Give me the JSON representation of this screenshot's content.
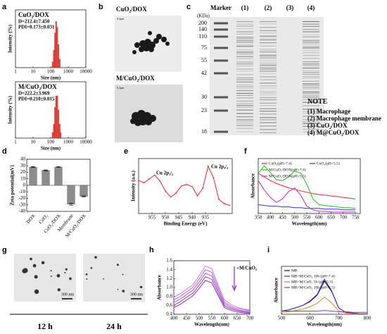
{
  "panel_labels": [
    "a",
    "b",
    "c",
    "d",
    "e",
    "f",
    "g",
    "h",
    "i"
  ],
  "chart_data": [
    {
      "type": "histogram",
      "annotations": [
        "CuO₂/DOX",
        "D=212.4±7.450",
        "PDI=0.173±0.031"
      ],
      "xlabel": "Size (nm)",
      "ylabel": "Intensity (%)",
      "log_x": true,
      "xlim": [
        1,
        10000
      ],
      "xticks": [
        1,
        10,
        100,
        1000,
        10000
      ],
      "ylim": [
        0,
        20
      ],
      "bins": [
        120,
        140,
        165,
        190,
        220,
        255,
        300,
        350
      ],
      "counts": [
        2,
        6,
        12,
        16,
        14,
        8,
        3
      ],
      "color": "#e8483f"
    },
    {
      "type": "histogram",
      "annotations": [
        "M/CuO₂/DOX",
        "D=222.2±3.969",
        "PDI=0.210±0.015"
      ],
      "xlabel": "Size (nm)",
      "ylabel": "Intensity (%)",
      "log_x": true,
      "xlim": [
        1,
        10000
      ],
      "xticks": [
        1,
        10,
        100,
        1000,
        10000
      ],
      "ylim": [
        0,
        20
      ],
      "bins": [
        120,
        140,
        165,
        190,
        220,
        255,
        300,
        350,
        400
      ],
      "counts": [
        2,
        5,
        11,
        15,
        15,
        10,
        5,
        2
      ],
      "color": "#e8483f"
    },
    {
      "type": "bar",
      "ylabel": "Zeta potential(mV)",
      "categories": [
        "DOX",
        "CuO₂",
        "CuO₂/DOX",
        "Membrane",
        "M/CuO₂/DOX"
      ],
      "values": [
        28,
        23,
        28,
        -29,
        -17
      ],
      "errors": [
        0.8,
        0.6,
        0.7,
        1.5,
        0.8
      ],
      "color": "#8c8c8c",
      "ylim": [
        -40,
        40
      ],
      "yticks": [
        40,
        30,
        20,
        10,
        0,
        -10,
        -20,
        -30,
        -40
      ]
    },
    {
      "type": "line",
      "xlabel": "Binding Energy (eV)",
      "ylabel": "Intensity (a.u.)",
      "annotations": [
        "Cu 2p₁/₂",
        "Cu 2p₃/₂"
      ],
      "xlim": [
        960,
        925
      ],
      "xticks": [
        955,
        950,
        945,
        940,
        935
      ],
      "ylim": [
        0,
        10
      ],
      "x": [
        960,
        958,
        956,
        954,
        952,
        950,
        948,
        946,
        944,
        942,
        940,
        938,
        936,
        934,
        932,
        930,
        928,
        926
      ],
      "series": [
        {
          "color": "#e8262a",
          "values": [
            6.0,
            5.6,
            6.3,
            7.0,
            5.9,
            4.1,
            3.0,
            3.7,
            5.0,
            5.3,
            4.9,
            3.2,
            4.6,
            8.6,
            6.5,
            2.6,
            1.8,
            1.5
          ]
        }
      ]
    },
    {
      "type": "line",
      "xlabel": "Wavelength(nm)",
      "ylabel": "Absorbance",
      "xlim": [
        350,
        770
      ],
      "xticks": [
        350,
        400,
        450,
        500,
        550,
        600,
        650,
        700,
        750
      ],
      "ylim": [
        0,
        0.75
      ],
      "x": [
        350,
        375,
        400,
        425,
        450,
        475,
        500,
        525,
        550,
        575,
        600,
        625,
        650,
        675,
        700,
        725,
        750
      ],
      "series": [
        {
          "name": "CuO₂(pH=7.4)",
          "color": "#e8262a",
          "values": [
            0.55,
            0.5,
            0.45,
            0.41,
            0.38,
            0.35,
            0.33,
            0.31,
            0.29,
            0.27,
            0.26,
            0.25,
            0.24,
            0.23,
            0.22,
            0.21,
            0.2
          ]
        },
        {
          "name": "CuO₂(pH=5.5)",
          "color": "#2f2fd8",
          "values": [
            0.12,
            0.11,
            0.1,
            0.1,
            0.09,
            0.09,
            0.08,
            0.08,
            0.07,
            0.07,
            0.07,
            0.06,
            0.06,
            0.06,
            0.05,
            0.05,
            0.05
          ]
        },
        {
          "name": "M/CuO₂/DOX(pH=7.4)",
          "color": "#2bb82b",
          "values": [
            0.55,
            0.65,
            0.56,
            0.46,
            0.45,
            0.5,
            0.58,
            0.55,
            0.4,
            0.2,
            0.12,
            0.11,
            0.1,
            0.09,
            0.08,
            0.08,
            0.07
          ]
        },
        {
          "name": "M/CuO₂/DOX(pH=5.5)",
          "color": "#c02cc8",
          "values": [
            0.45,
            0.32,
            0.22,
            0.15,
            0.2,
            0.3,
            0.35,
            0.25,
            0.1,
            0.05,
            0.03,
            0.03,
            0.02,
            0.02,
            0.02,
            0.02,
            0.02
          ]
        }
      ]
    },
    {
      "type": "line",
      "xlabel": "Wavelength(nm)",
      "ylabel": "Absorbance",
      "annotations": [
        "+M/CuO₂"
      ],
      "xlim": [
        400,
        700
      ],
      "xticks": [
        400,
        450,
        500,
        550,
        600,
        650,
        700
      ],
      "ylim": [
        0.4,
        1.6
      ],
      "yticks": [
        0.4,
        0.6,
        0.8,
        {
          "value": 1,
          "label": "1.0"
        },
        1.2,
        1.4,
        1.6
      ],
      "x": [
        400,
        425,
        450,
        475,
        500,
        525,
        550,
        575,
        600,
        625,
        650,
        675,
        700
      ],
      "series": [
        {
          "color": "#c77dd9",
          "values": [
            0.78,
            0.86,
            0.96,
            1.06,
            1.26,
            1.48,
            1.42,
            1.06,
            0.72,
            0.62,
            0.56,
            0.52,
            0.5
          ]
        },
        {
          "color": "#b866d0",
          "values": [
            0.72,
            0.8,
            0.9,
            1.0,
            1.19,
            1.4,
            1.34,
            1.0,
            0.67,
            0.58,
            0.53,
            0.5,
            0.48
          ]
        },
        {
          "color": "#a652c6",
          "values": [
            0.66,
            0.74,
            0.84,
            0.94,
            1.12,
            1.32,
            1.26,
            0.94,
            0.63,
            0.55,
            0.5,
            0.47,
            0.46
          ]
        },
        {
          "color": "#9640bb",
          "values": [
            0.6,
            0.68,
            0.78,
            0.87,
            1.05,
            1.24,
            1.18,
            0.88,
            0.59,
            0.52,
            0.48,
            0.45,
            0.44
          ]
        },
        {
          "color": "#8630b0",
          "values": [
            0.55,
            0.62,
            0.72,
            0.81,
            0.98,
            1.16,
            1.1,
            0.82,
            0.55,
            0.49,
            0.45,
            0.43,
            0.42
          ]
        }
      ]
    },
    {
      "type": "line",
      "xlabel": "Wavelength(nm)",
      "ylabel": "Absorbance",
      "xlim": [
        500,
        800
      ],
      "xticks": [
        500,
        600,
        700,
        800
      ],
      "ylim": [
        0,
        0.75
      ],
      "x": [
        500,
        525,
        550,
        575,
        600,
        625,
        650,
        675,
        700,
        725,
        750,
        775,
        800
      ],
      "series": [
        {
          "name": "MB",
          "color": "#111111",
          "values": [
            0.05,
            0.07,
            0.1,
            0.14,
            0.2,
            0.3,
            0.52,
            0.36,
            0.1,
            0.03,
            0.02,
            0.01,
            0.01
          ]
        },
        {
          "name": "MB+M/CuO₂ 10h (pH=7.4)",
          "color": "#2f2fd8",
          "values": [
            0.05,
            0.07,
            0.1,
            0.14,
            0.21,
            0.31,
            0.55,
            0.37,
            0.1,
            0.03,
            0.02,
            0.01,
            0.01
          ]
        },
        {
          "name": "MB+M/CuO₂ 5h (pH=5.5)",
          "color": "#e8822a",
          "values": [
            0.03,
            0.04,
            0.06,
            0.08,
            0.12,
            0.17,
            0.27,
            0.18,
            0.05,
            0.02,
            0.01,
            0.01,
            0.01
          ]
        },
        {
          "name": "MB+M/CuO₂ 10h (pH=5.5)",
          "color": "#8a3bb8",
          "values": [
            0.05,
            0.05,
            0.05,
            0.05,
            0.05,
            0.05,
            0.06,
            0.05,
            0.04,
            0.04,
            0.03,
            0.03,
            0.03
          ]
        }
      ]
    }
  ],
  "tem_b": {
    "labels": [
      "CuO₂/DOX",
      "M/CuO₂/DOX"
    ],
    "scale": [
      "0.2μm",
      "0.2μm"
    ]
  },
  "gel": {
    "unit": "(KDa)",
    "lanes": [
      "Marker",
      "(1)",
      "(2)",
      "(3)",
      "(4)"
    ],
    "markers": [
      200,
      140,
      110,
      75,
      55,
      42,
      30,
      23,
      18
    ],
    "note_title": "NOTE",
    "notes": [
      "(1) Macrophage",
      "(2) Macrophage membrane",
      "(3) CuO₂/DOX",
      "(4) M@CuO₂/DOX"
    ]
  },
  "tem_g": {
    "scale": [
      "300 nm",
      "300 nm"
    ],
    "times": [
      "12 h",
      "24 h"
    ]
  }
}
